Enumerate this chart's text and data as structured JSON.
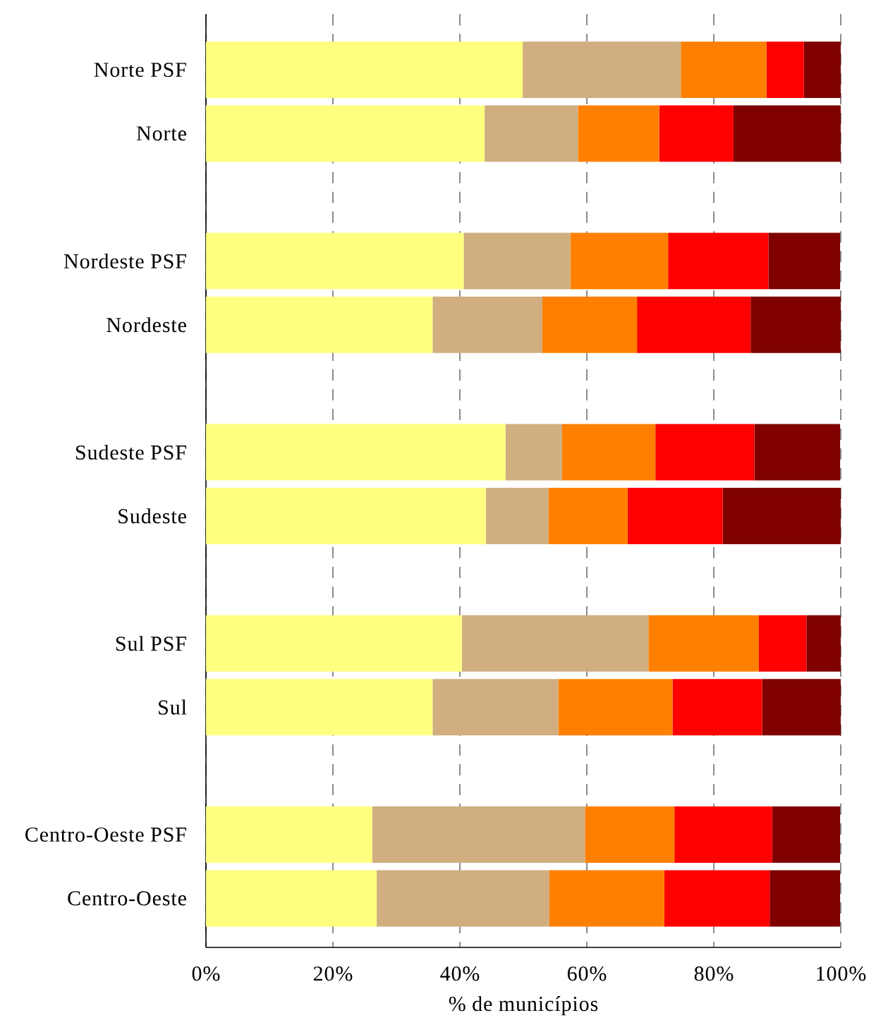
{
  "chart_data": {
    "type": "bar",
    "orientation": "horizontal",
    "stacked": true,
    "xlabel": "% de municípios",
    "categories": [
      "Norte PSF",
      "Norte",
      null,
      "Nordeste PSF",
      "Nordeste",
      null,
      "Sudeste PSF",
      "Sudeste",
      null,
      "Sul PSF",
      "Sul",
      null,
      "Centro-Oeste PSF",
      "Centro-Oeste"
    ],
    "series": [
      {
        "color": "#ffff80",
        "values": [
          49.9,
          43.9,
          null,
          40.6,
          35.7,
          null,
          47.2,
          44.1,
          null,
          40.3,
          35.7,
          null,
          26.2,
          26.9
        ]
      },
      {
        "color": "#d0ae80",
        "values": [
          24.9,
          14.7,
          null,
          16.8,
          17.3,
          null,
          8.9,
          9.9,
          null,
          29.4,
          19.8,
          null,
          33.5,
          27.2
        ]
      },
      {
        "color": "#ff8000",
        "values": [
          13.5,
          12.8,
          null,
          15.4,
          14.9,
          null,
          14.7,
          12.4,
          null,
          17.4,
          18.0,
          null,
          14.1,
          18.1
        ]
      },
      {
        "color": "#ff0000",
        "values": [
          5.9,
          11.7,
          null,
          15.8,
          17.9,
          null,
          15.6,
          15.0,
          null,
          7.5,
          14.1,
          null,
          15.4,
          16.6
        ]
      },
      {
        "color": "#800000",
        "values": [
          5.8,
          16.9,
          null,
          11.3,
          14.2,
          null,
          13.5,
          18.6,
          null,
          5.4,
          12.4,
          null,
          10.7,
          11.1
        ]
      }
    ],
    "xlim": [
      0,
      100
    ],
    "xticks": [
      {
        "value": 0,
        "label": "0%"
      },
      {
        "value": 20,
        "label": "20%"
      },
      {
        "value": 40,
        "label": "40%"
      },
      {
        "value": 60,
        "label": "60%"
      },
      {
        "value": 80,
        "label": "80%"
      },
      {
        "value": 100,
        "label": "100%"
      }
    ],
    "grid": "x"
  }
}
